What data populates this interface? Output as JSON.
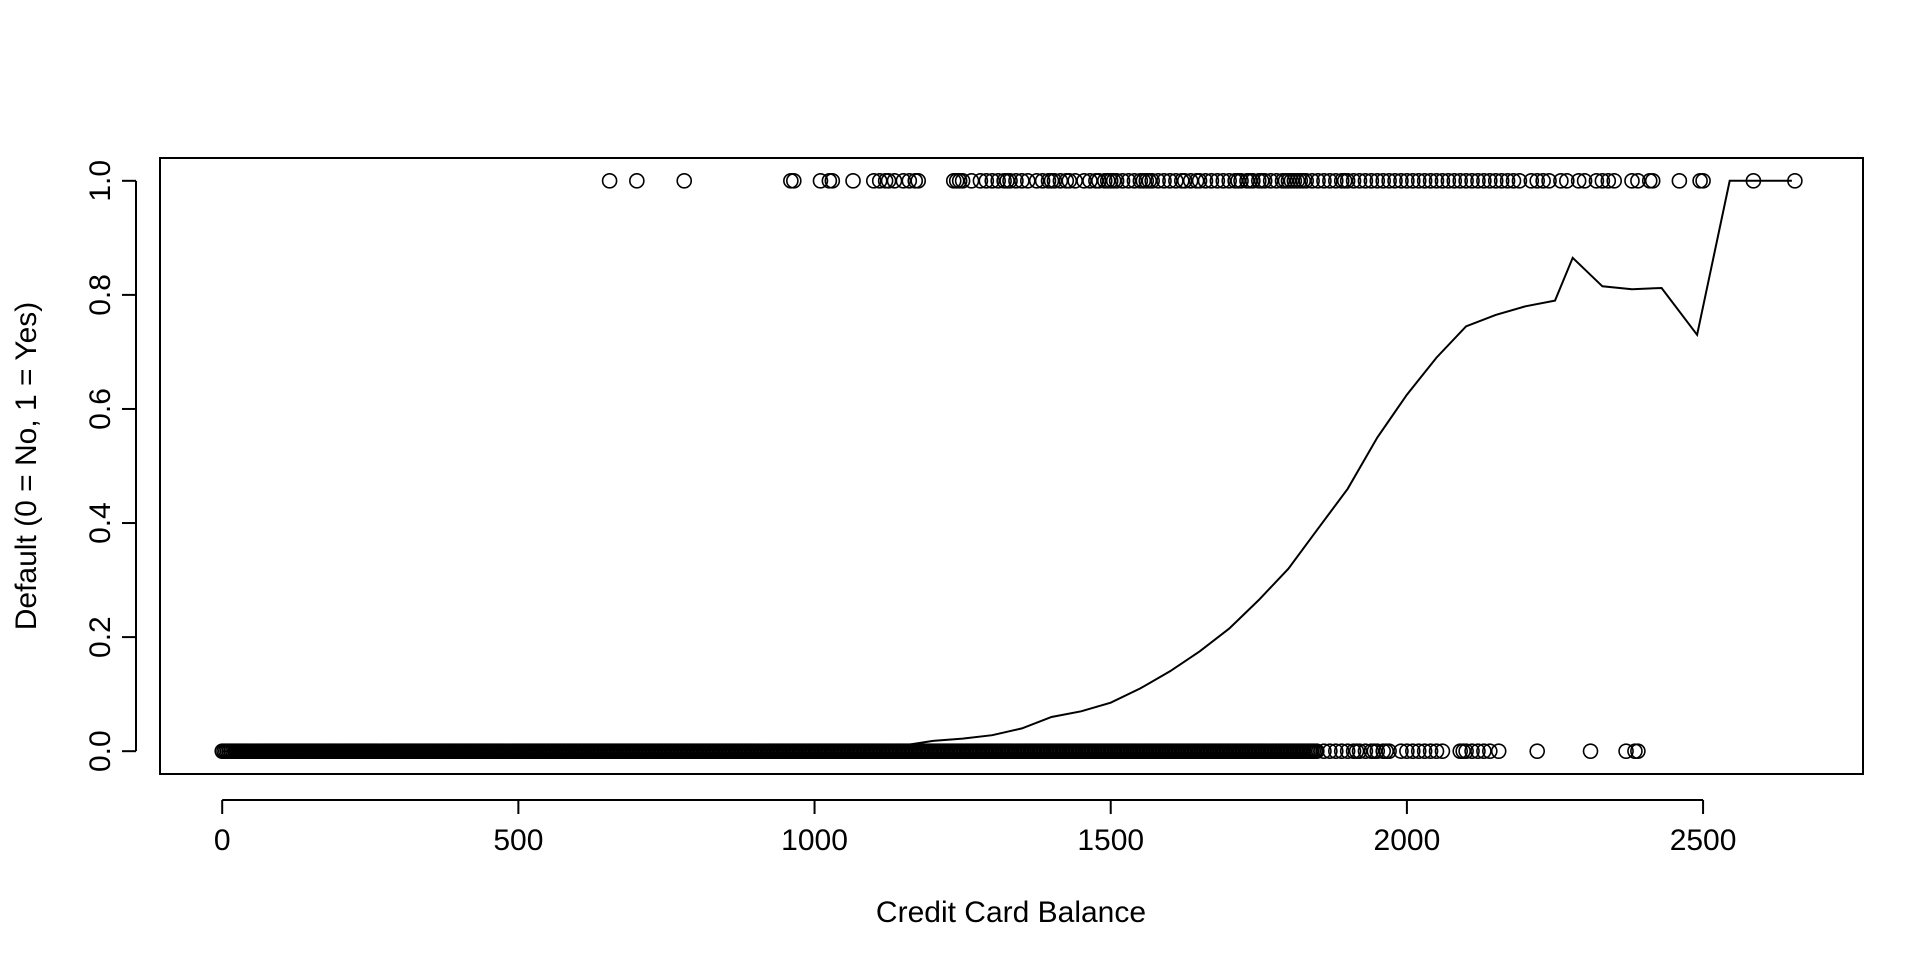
{
  "chart_data": {
    "type": "scatter",
    "title": "",
    "xlabel": "Credit Card Balance",
    "ylabel": "Default (0 = No, 1 = Yes)",
    "xlim": [
      -105,
      2770
    ],
    "ylim": [
      -0.04,
      1.04
    ],
    "x_ticks": [
      0,
      500,
      1000,
      1500,
      2000,
      2500
    ],
    "x_tick_labels": [
      "0",
      "500",
      "1000",
      "1500",
      "2000",
      "2500"
    ],
    "y_ticks": [
      0.0,
      0.2,
      0.4,
      0.6,
      0.8,
      1.0
    ],
    "y_tick_labels": [
      "0.0",
      "0.2",
      "0.4",
      "0.6",
      "0.8",
      "1.0"
    ],
    "grid": false,
    "legend": "none",
    "marker": "open-circle",
    "colors": {
      "points": "#000000",
      "line": "#000000",
      "frame": "#000000",
      "background": "#ffffff"
    },
    "series": [
      {
        "kind": "points",
        "y": 1,
        "x": [
          654,
          700,
          780,
          960,
          965,
          1010,
          1025,
          1030,
          1065,
          1100,
          1110,
          1120,
          1125,
          1135,
          1150,
          1160,
          1170,
          1175,
          1235,
          1240,
          1245,
          1250,
          1265,
          1280,
          1290,
          1300,
          1310,
          1320,
          1325,
          1330,
          1340,
          1350,
          1360,
          1375,
          1385,
          1395,
          1400,
          1405,
          1415,
          1425,
          1430,
          1440,
          1455,
          1465,
          1475,
          1480,
          1490,
          1495,
          1500,
          1505,
          1510,
          1520,
          1530,
          1540,
          1550,
          1555,
          1560,
          1565,
          1570,
          1580,
          1590,
          1600,
          1610,
          1620,
          1625,
          1635,
          1645,
          1650,
          1660,
          1670,
          1680,
          1690,
          1700,
          1710,
          1715,
          1720,
          1730,
          1735,
          1740,
          1750,
          1755,
          1760,
          1770,
          1780,
          1790,
          1795,
          1800,
          1805,
          1810,
          1815,
          1820,
          1825,
          1830,
          1840,
          1850,
          1860,
          1870,
          1880,
          1890,
          1895,
          1900,
          1910,
          1920,
          1930,
          1940,
          1950,
          1960,
          1970,
          1980,
          1990,
          2000,
          2010,
          2020,
          2030,
          2040,
          2050,
          2060,
          2070,
          2080,
          2090,
          2100,
          2110,
          2120,
          2130,
          2140,
          2150,
          2160,
          2170,
          2180,
          2190,
          2210,
          2220,
          2230,
          2240,
          2260,
          2270,
          2290,
          2300,
          2320,
          2330,
          2340,
          2350,
          2380,
          2390,
          2410,
          2415,
          2460,
          2495,
          2500,
          2585,
          2655
        ]
      },
      {
        "kind": "points",
        "y": 0,
        "x_dense_range": [
          0,
          1850
        ],
        "x": [
          1860,
          1870,
          1880,
          1890,
          1900,
          1910,
          1915,
          1920,
          1930,
          1940,
          1945,
          1950,
          1960,
          1965,
          1970,
          1990,
          2000,
          2010,
          2020,
          2030,
          2040,
          2050,
          2060,
          2090,
          2095,
          2100,
          2110,
          2120,
          2130,
          2140,
          2155,
          2220,
          2310,
          2370,
          2385,
          2390
        ]
      },
      {
        "kind": "line",
        "x": [
          0,
          1100,
          1150,
          1200,
          1250,
          1300,
          1350,
          1400,
          1450,
          1500,
          1550,
          1600,
          1650,
          1700,
          1750,
          1800,
          1850,
          1900,
          1950,
          2000,
          2050,
          2100,
          2150,
          2200,
          2250,
          2280,
          2330,
          2380,
          2430,
          2490,
          2545,
          2600,
          2650
        ],
        "y": [
          0.0,
          0.003,
          0.01,
          0.018,
          0.022,
          0.028,
          0.04,
          0.06,
          0.07,
          0.085,
          0.11,
          0.14,
          0.175,
          0.215,
          0.265,
          0.32,
          0.39,
          0.46,
          0.55,
          0.625,
          0.69,
          0.745,
          0.765,
          0.78,
          0.79,
          0.865,
          0.815,
          0.81,
          0.812,
          0.73,
          1.0,
          1.0,
          1.0
        ]
      }
    ]
  }
}
